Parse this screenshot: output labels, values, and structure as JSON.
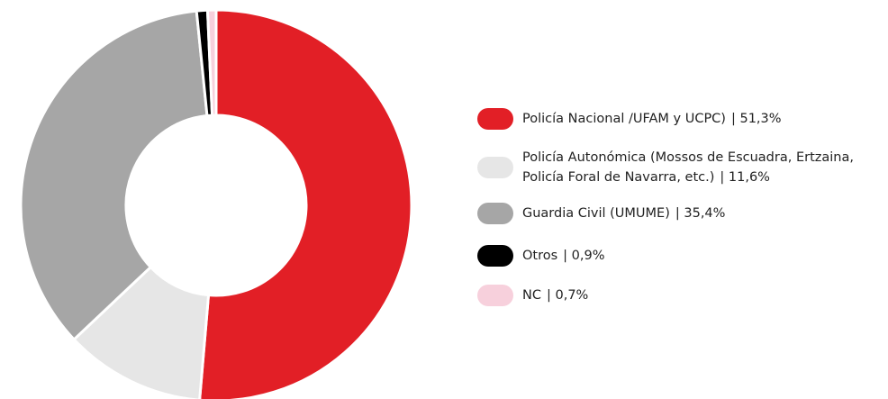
{
  "chart_data": {
    "type": "donut",
    "categories": [
      "Policía Nacional /UFAM y UCPC)",
      "Policía Autonómica (Mossos de Escuadra, Ertzaina, Policía Foral de Navarra, etc.)",
      "Guardia Civil (UMUME)",
      "Otros",
      "NC"
    ],
    "values": [
      51.3,
      11.6,
      35.4,
      0.9,
      0.7
    ],
    "value_labels": [
      "| 51,3%",
      "| 11,6%",
      "| 35,4%",
      "| 0,9%",
      "| 0,7%"
    ],
    "colors": [
      "#e21f26",
      "#e6e6e6",
      "#a6a6a6",
      "#000000",
      "#f7d0dc"
    ]
  }
}
